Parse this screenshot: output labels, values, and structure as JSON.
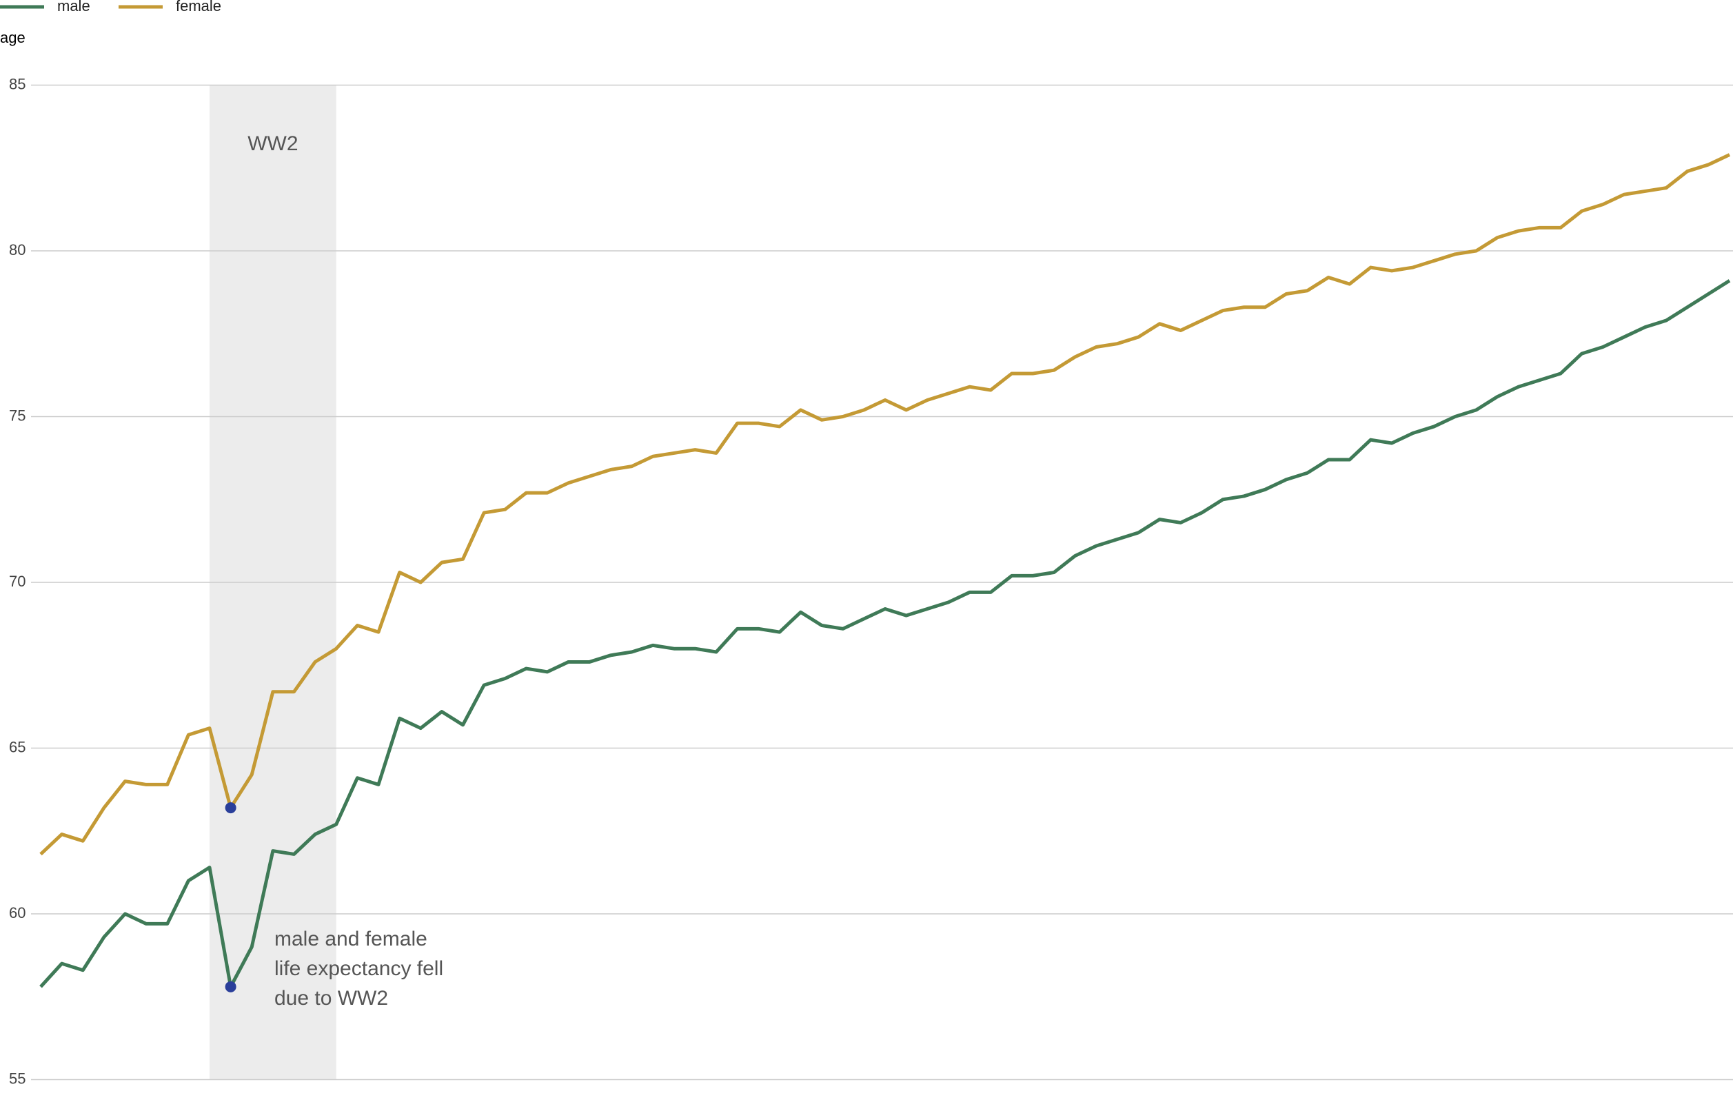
{
  "chart_data": {
    "type": "line",
    "ylabel": "age",
    "ylim": [
      55,
      85
    ],
    "yticks": [
      55,
      60,
      65,
      70,
      75,
      80,
      85
    ],
    "grid": true,
    "legend": "top-left",
    "band": {
      "label": "WW2",
      "range": [
        8,
        14
      ]
    },
    "marker_index": 9,
    "marker_color": "#2a3f9a",
    "annotation": [
      "male and female",
      "life expectancy fell",
      "due to WW2"
    ],
    "series": [
      {
        "name": "male",
        "color": "#3f7a57",
        "values": [
          57.8,
          58.5,
          58.3,
          59.3,
          60.0,
          59.7,
          59.7,
          61.0,
          61.4,
          57.8,
          59.0,
          61.9,
          61.8,
          62.4,
          62.7,
          64.1,
          63.9,
          65.9,
          65.6,
          66.1,
          65.7,
          66.9,
          67.1,
          67.4,
          67.3,
          67.6,
          67.6,
          67.8,
          67.9,
          68.1,
          68.0,
          68.0,
          67.9,
          68.6,
          68.6,
          68.5,
          69.1,
          68.7,
          68.6,
          68.9,
          69.2,
          69.0,
          69.2,
          69.4,
          69.7,
          69.7,
          70.2,
          70.2,
          70.3,
          70.8,
          71.1,
          71.3,
          71.5,
          71.9,
          71.8,
          72.1,
          72.5,
          72.6,
          72.8,
          73.1,
          73.3,
          73.7,
          73.7,
          74.3,
          74.2,
          74.5,
          74.7,
          75.0,
          75.2,
          75.6,
          75.9,
          76.1,
          76.3,
          76.9,
          77.1,
          77.4,
          77.7,
          77.9,
          78.3,
          78.7,
          79.1
        ]
      },
      {
        "name": "female",
        "color": "#c49a35",
        "values": [
          61.8,
          62.4,
          62.2,
          63.2,
          64.0,
          63.9,
          63.9,
          65.4,
          65.6,
          63.2,
          64.2,
          66.7,
          66.7,
          67.6,
          68.0,
          68.7,
          68.5,
          70.3,
          70.0,
          70.6,
          70.7,
          72.1,
          72.2,
          72.7,
          72.7,
          73.0,
          73.2,
          73.4,
          73.5,
          73.8,
          73.9,
          74.0,
          73.9,
          74.8,
          74.8,
          74.7,
          75.2,
          74.9,
          75.0,
          75.2,
          75.5,
          75.2,
          75.5,
          75.7,
          75.9,
          75.8,
          76.3,
          76.3,
          76.4,
          76.8,
          77.1,
          77.2,
          77.4,
          77.8,
          77.6,
          77.9,
          78.2,
          78.3,
          78.3,
          78.7,
          78.8,
          79.2,
          79.0,
          79.5,
          79.4,
          79.5,
          79.7,
          79.9,
          80.0,
          80.4,
          80.6,
          80.7,
          80.7,
          81.2,
          81.4,
          81.7,
          81.8,
          81.9,
          82.4,
          82.6,
          82.9
        ]
      }
    ]
  }
}
